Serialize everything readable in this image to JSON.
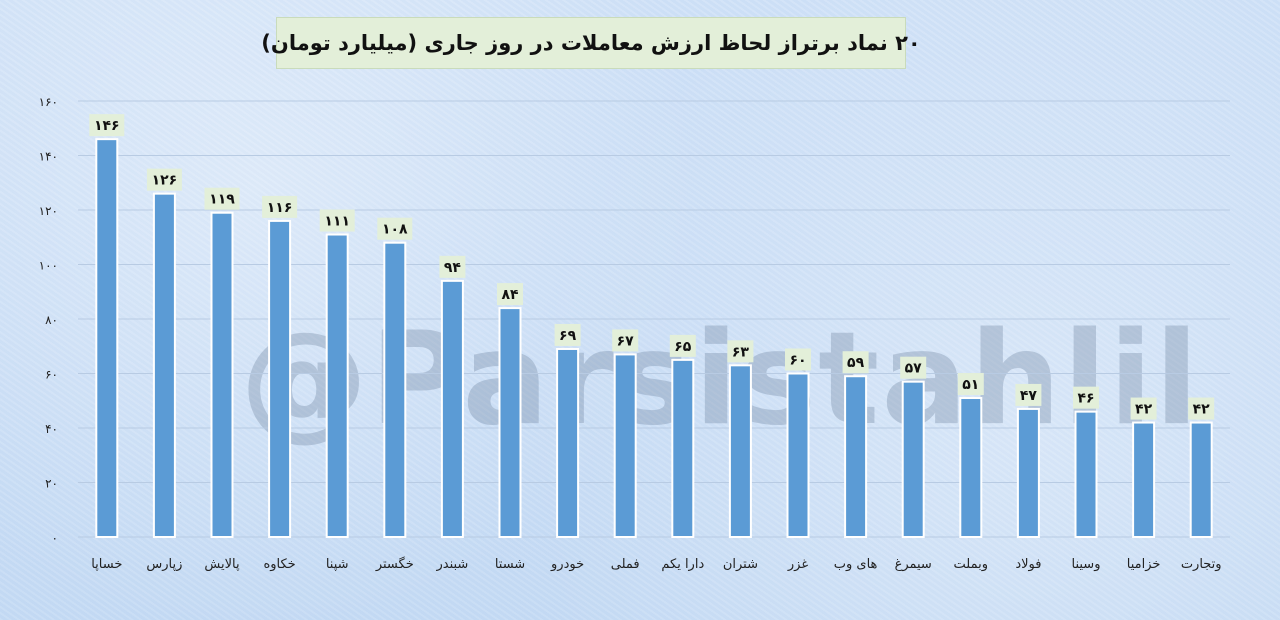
{
  "title": "۲۰ نماد برتراز لحاظ ارزش معاملات در روز جاری (میلیارد تومان)",
  "watermark": "@Parsistahlil",
  "colors": {
    "bar": "#5b9bd5",
    "bar_edge": "#ffffff",
    "label_bg": "#e3efd9",
    "grid": "#b8cbe3",
    "text": "#111111"
  },
  "chart_data": {
    "type": "bar",
    "categories": [
      "خساپا",
      "زپارس",
      "پالایش",
      "خکاوه",
      "شپنا",
      "خگستر",
      "شبندر",
      "شستا",
      "خودرو",
      "فملی",
      "دارا یکم",
      "شتران",
      "غزر",
      "های وب",
      "سیمرغ",
      "وبملت",
      "فولاد",
      "وسینا",
      "خزامیا",
      "وتجارت"
    ],
    "values": [
      146,
      126,
      119,
      116,
      111,
      108,
      94,
      84,
      69,
      67,
      65,
      63,
      60,
      59,
      57,
      51,
      47,
      46,
      42,
      42
    ],
    "value_labels": [
      "۱۴۶",
      "۱۲۶",
      "۱۱۹",
      "۱۱۶",
      "۱۱۱",
      "۱۰۸",
      "۹۴",
      "۸۴",
      "۶۹",
      "۶۷",
      "۶۵",
      "۶۳",
      "۶۰",
      "۵۹",
      "۵۷",
      "۵۱",
      "۴۷",
      "۴۶",
      "۴۲",
      "۴۲"
    ],
    "ylim": [
      0,
      160
    ],
    "yticks": [
      0,
      20,
      40,
      60,
      80,
      100,
      120,
      140,
      160
    ],
    "ytick_labels": [
      "۰",
      "۲۰",
      "۴۰",
      "۶۰",
      "۸۰",
      "۱۰۰",
      "۱۲۰",
      "۱۴۰",
      "۱۶۰"
    ],
    "grid": true,
    "legend": "none"
  }
}
